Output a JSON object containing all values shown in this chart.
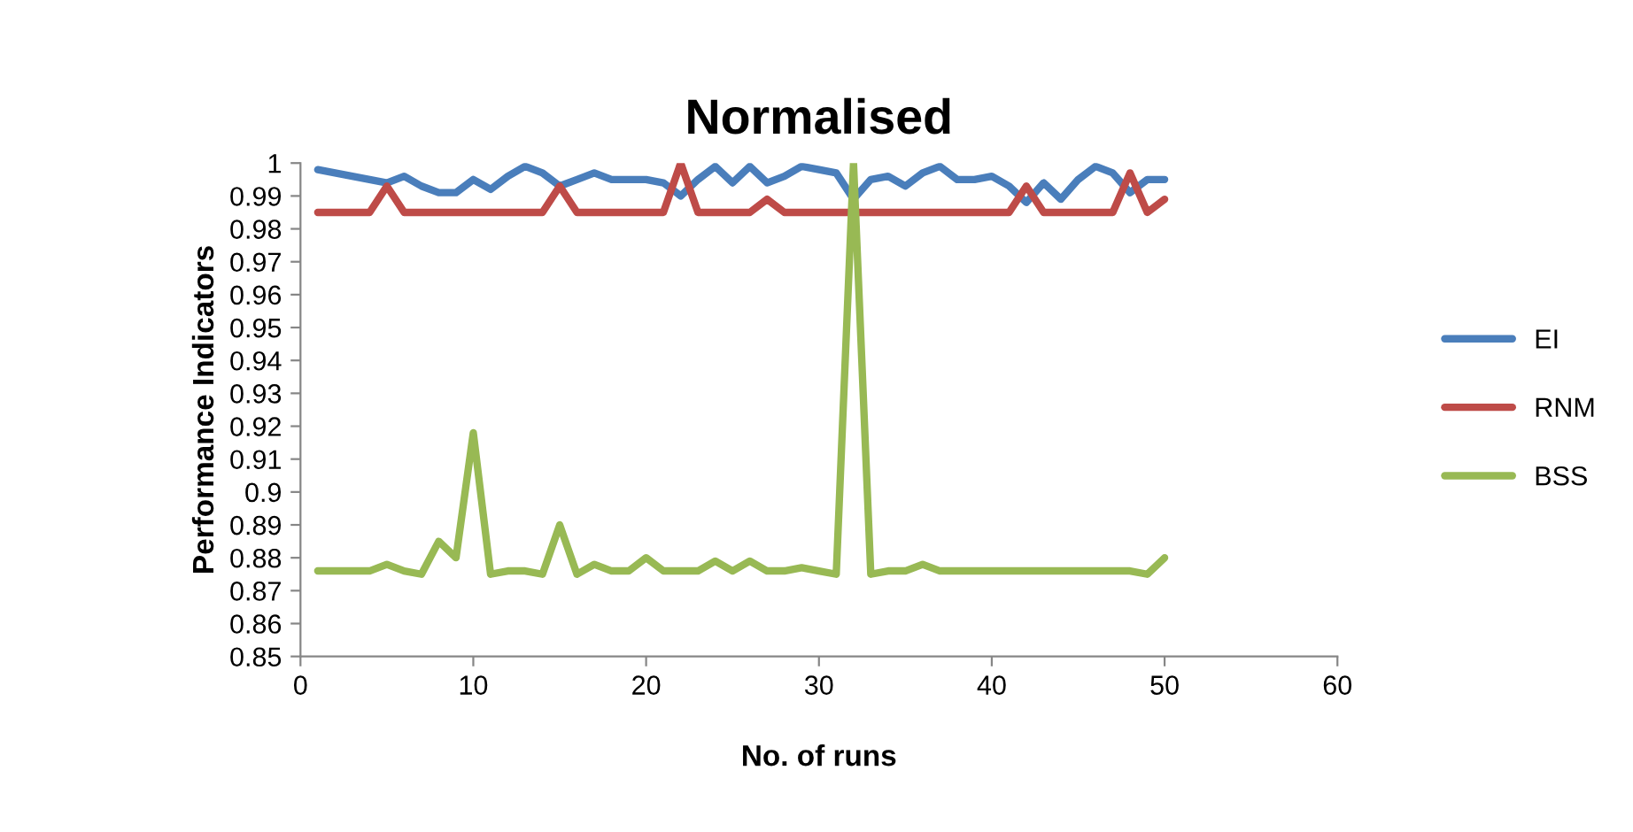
{
  "chart_data": {
    "type": "line",
    "title": "Normalised",
    "xlabel": "No. of runs",
    "ylabel": "Performance Indicators",
    "x": [
      1,
      2,
      3,
      4,
      5,
      6,
      7,
      8,
      9,
      10,
      11,
      12,
      13,
      14,
      15,
      16,
      17,
      18,
      19,
      20,
      21,
      22,
      23,
      24,
      25,
      26,
      27,
      28,
      29,
      30,
      31,
      32,
      33,
      34,
      35,
      36,
      37,
      38,
      39,
      40,
      41,
      42,
      43,
      44,
      45,
      46,
      47,
      48,
      49,
      50
    ],
    "series": [
      {
        "name": "EI",
        "color": "#4a7ebb",
        "values": [
          0.998,
          0.997,
          0.996,
          0.995,
          0.994,
          0.996,
          0.993,
          0.991,
          0.991,
          0.995,
          0.992,
          0.996,
          0.999,
          0.997,
          0.993,
          0.995,
          0.997,
          0.995,
          0.995,
          0.995,
          0.994,
          0.99,
          0.995,
          0.999,
          0.994,
          0.999,
          0.994,
          0.996,
          0.999,
          0.998,
          0.997,
          0.989,
          0.995,
          0.996,
          0.993,
          0.997,
          0.999,
          0.995,
          0.995,
          0.996,
          0.993,
          0.988,
          0.994,
          0.989,
          0.995,
          0.999,
          0.997,
          0.991,
          0.995,
          0.995
        ]
      },
      {
        "name": "RNM",
        "color": "#be4b48",
        "values": [
          0.985,
          0.985,
          0.985,
          0.985,
          0.993,
          0.985,
          0.985,
          0.985,
          0.985,
          0.985,
          0.985,
          0.985,
          0.985,
          0.985,
          0.993,
          0.985,
          0.985,
          0.985,
          0.985,
          0.985,
          0.985,
          1,
          0.985,
          0.985,
          0.985,
          0.985,
          0.989,
          0.985,
          0.985,
          0.985,
          0.985,
          0.985,
          0.985,
          0.985,
          0.985,
          0.985,
          0.985,
          0.985,
          0.985,
          0.985,
          0.985,
          0.993,
          0.985,
          0.985,
          0.985,
          0.985,
          0.985,
          0.997,
          0.985,
          0.989
        ]
      },
      {
        "name": "BSS",
        "color": "#98b954",
        "values": [
          0.876,
          0.876,
          0.876,
          0.876,
          0.878,
          0.876,
          0.875,
          0.885,
          0.88,
          0.918,
          0.875,
          0.876,
          0.876,
          0.875,
          0.89,
          0.875,
          0.878,
          0.876,
          0.876,
          0.88,
          0.876,
          0.876,
          0.876,
          0.879,
          0.876,
          0.879,
          0.876,
          0.876,
          0.877,
          0.876,
          0.875,
          1,
          0.875,
          0.876,
          0.876,
          0.878,
          0.876,
          0.876,
          0.876,
          0.876,
          0.876,
          0.876,
          0.876,
          0.876,
          0.876,
          0.876,
          0.876,
          0.876,
          0.875,
          0.88
        ]
      }
    ],
    "xlim": [
      0,
      60
    ],
    "xticks": [
      0,
      10,
      20,
      30,
      40,
      50,
      60
    ],
    "ylim": [
      0.85,
      1
    ],
    "yticks": [
      0.85,
      0.86,
      0.87,
      0.88,
      0.89,
      {
        "value": 0.9,
        "label": "0.9"
      },
      0.91,
      0.92,
      0.93,
      0.94,
      0.95,
      0.96,
      0.97,
      0.98,
      0.99,
      {
        "value": 1,
        "label": "1"
      }
    ],
    "grid": false,
    "legend": "right",
    "marker": "none",
    "line_style": "solid"
  }
}
